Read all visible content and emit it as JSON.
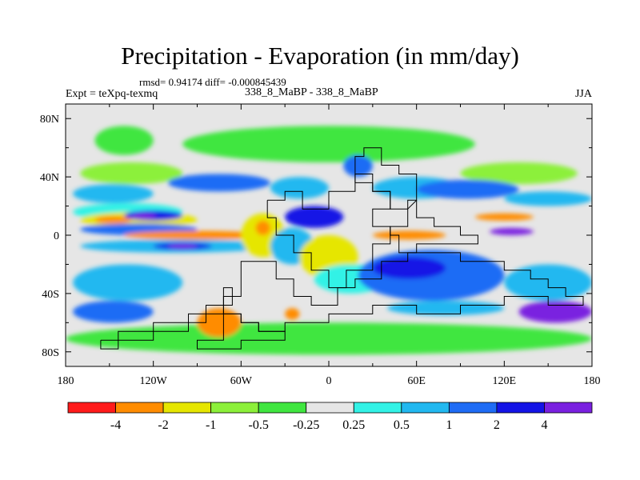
{
  "title": "Precipitation - Evaporation (in mm/day)",
  "stats_line": "rmsd= 0.94174 diff= -0.000845439",
  "experiment_label": "Expt = teXpq-texmq",
  "case_label": "338_8_MaBP - 338_8_MaBP",
  "season": "JJA",
  "colors": {
    "red": "#ff1b1b",
    "orange": "#ff8c00",
    "yellow": "#e6e600",
    "lightgreen": "#8cf03a",
    "green": "#40e640",
    "white": "#e6e6e6",
    "cyan": "#33f2e6",
    "lightblue": "#22b8f0",
    "blue": "#1f6cf5",
    "darkblue": "#1414e6",
    "purple": "#7a20e0",
    "ocean_bg": "#e6e6e6",
    "coastline": "#000000"
  },
  "chart_data": {
    "type": "heatmap",
    "title": "Precipitation - Evaporation (in mm/day)",
    "units": "mm/day",
    "projection": "cylindrical equidistant",
    "xlim": [
      -180,
      180
    ],
    "ylim": [
      -90,
      90
    ],
    "x_ticks": [
      -180,
      -120,
      -60,
      0,
      60,
      120,
      180
    ],
    "x_tick_labels": [
      "180",
      "120W",
      "60W",
      "0",
      "60E",
      "120E",
      "180"
    ],
    "y_ticks": [
      80,
      40,
      0,
      -40,
      -80
    ],
    "y_tick_labels": [
      "80N",
      "40N",
      "0",
      "40S",
      "80S"
    ],
    "colorbar": {
      "levels": [
        "-4",
        "-2",
        "-1",
        "-0.5",
        "-0.25",
        "0.25",
        "0.5",
        "1",
        "2",
        "4"
      ],
      "colors": [
        "#ff1b1b",
        "#ff8c00",
        "#e6e600",
        "#8cf03a",
        "#40e640",
        "#e6e6e6",
        "#33f2e6",
        "#22b8f0",
        "#1f6cf5",
        "#1414e6",
        "#7a20e0"
      ]
    },
    "regions": [
      {
        "category": "green",
        "lon_min": -160,
        "lon_max": -120,
        "lat_min": 55,
        "lat_max": 75
      },
      {
        "category": "green",
        "lon_min": -100,
        "lon_max": 100,
        "lat_min": 50,
        "lat_max": 75
      },
      {
        "category": "green",
        "lon_min": -180,
        "lon_max": 180,
        "lat_min": -82,
        "lat_max": -60
      },
      {
        "category": "lightgreen",
        "lon_min": -170,
        "lon_max": -100,
        "lat_min": 35,
        "lat_max": 50
      },
      {
        "category": "lightgreen",
        "lon_min": 90,
        "lon_max": 170,
        "lat_min": 35,
        "lat_max": 50
      },
      {
        "category": "lightblue",
        "lon_min": -175,
        "lon_max": -120,
        "lat_min": 22,
        "lat_max": 35
      },
      {
        "category": "cyan",
        "lon_min": -175,
        "lon_max": -100,
        "lat_min": 10,
        "lat_max": 22
      },
      {
        "category": "blue",
        "lon_min": -110,
        "lon_max": -40,
        "lat_min": 30,
        "lat_max": 42
      },
      {
        "category": "lightblue",
        "lon_min": -40,
        "lon_max": 0,
        "lat_min": 25,
        "lat_max": 40
      },
      {
        "category": "blue",
        "lon_min": 10,
        "lon_max": 30,
        "lat_min": 40,
        "lat_max": 55
      },
      {
        "category": "lightblue",
        "lon_min": 30,
        "lon_max": 90,
        "lat_min": 25,
        "lat_max": 40
      },
      {
        "category": "blue",
        "lon_min": 60,
        "lon_max": 130,
        "lat_min": 25,
        "lat_max": 38
      },
      {
        "category": "lightblue",
        "lon_min": 120,
        "lon_max": 180,
        "lat_min": 20,
        "lat_max": 30
      },
      {
        "category": "yellow",
        "lon_min": -170,
        "lon_max": -90,
        "lat_min": 5,
        "lat_max": 16
      },
      {
        "category": "orange",
        "lon_min": -160,
        "lon_max": -135,
        "lat_min": 8,
        "lat_max": 13
      },
      {
        "category": "darkblue",
        "lon_min": -140,
        "lon_max": -100,
        "lat_min": 10,
        "lat_max": 17
      },
      {
        "category": "purple",
        "lon_min": -135,
        "lon_max": -118,
        "lat_min": 11,
        "lat_max": 15
      },
      {
        "category": "blue",
        "lon_min": -170,
        "lon_max": -90,
        "lat_min": 0,
        "lat_max": 8
      },
      {
        "category": "orange",
        "lon_min": -140,
        "lon_max": -40,
        "lat_min": -3,
        "lat_max": 3
      },
      {
        "category": "lightblue",
        "lon_min": -170,
        "lon_max": -40,
        "lat_min": -12,
        "lat_max": -3
      },
      {
        "category": "darkblue",
        "lon_min": -120,
        "lon_max": -80,
        "lat_min": -10,
        "lat_max": -5
      },
      {
        "category": "purple",
        "lon_min": -110,
        "lon_max": -90,
        "lat_min": -9,
        "lat_max": -6
      },
      {
        "category": "yellow",
        "lon_min": -60,
        "lon_max": -30,
        "lat_min": -15,
        "lat_max": 15
      },
      {
        "category": "orange",
        "lon_min": -50,
        "lon_max": -40,
        "lat_min": 0,
        "lat_max": 10
      },
      {
        "category": "lightblue",
        "lon_min": -40,
        "lon_max": -10,
        "lat_min": -20,
        "lat_max": 5
      },
      {
        "category": "yellow",
        "lon_min": -20,
        "lon_max": 20,
        "lat_min": -30,
        "lat_max": 0
      },
      {
        "category": "darkblue",
        "lon_min": -30,
        "lon_max": 10,
        "lat_min": 5,
        "lat_max": 20
      },
      {
        "category": "cyan",
        "lon_min": -10,
        "lon_max": 40,
        "lat_min": -40,
        "lat_max": -20
      },
      {
        "category": "orange",
        "lon_min": 30,
        "lon_max": 80,
        "lat_min": -3,
        "lat_max": 3
      },
      {
        "category": "orange",
        "lon_min": 100,
        "lon_max": 140,
        "lat_min": 10,
        "lat_max": 15
      },
      {
        "category": "purple",
        "lon_min": 110,
        "lon_max": 140,
        "lat_min": 0,
        "lat_max": 5
      },
      {
        "category": "blue",
        "lon_min": 20,
        "lon_max": 120,
        "lat_min": -45,
        "lat_max": -10
      },
      {
        "category": "darkblue",
        "lon_min": 30,
        "lon_max": 80,
        "lat_min": -30,
        "lat_max": -15
      },
      {
        "category": "lightblue",
        "lon_min": 120,
        "lon_max": 180,
        "lat_min": -45,
        "lat_max": -20
      },
      {
        "category": "lightblue",
        "lon_min": -175,
        "lon_max": -100,
        "lat_min": -45,
        "lat_max": -20
      },
      {
        "category": "blue",
        "lon_min": -175,
        "lon_max": -120,
        "lat_min": -60,
        "lat_max": -45
      },
      {
        "category": "purple",
        "lon_min": 130,
        "lon_max": 180,
        "lat_min": -60,
        "lat_max": -45
      },
      {
        "category": "lightblue",
        "lon_min": 40,
        "lon_max": 120,
        "lat_min": -55,
        "lat_max": -45
      },
      {
        "category": "orange",
        "lon_min": -90,
        "lon_max": -60,
        "lat_min": -70,
        "lat_max": -50
      },
      {
        "category": "orange",
        "lon_min": -30,
        "lon_max": -20,
        "lat_min": -58,
        "lat_max": -50
      }
    ],
    "coastlines": [
      {
        "name": "tethys-continent",
        "points": [
          [
            -42,
            24
          ],
          [
            -42,
            12
          ],
          [
            -36,
            12
          ],
          [
            -36,
            0
          ],
          [
            -24,
            0
          ],
          [
            -24,
            -12
          ],
          [
            -12,
            -12
          ],
          [
            -12,
            -24
          ],
          [
            0,
            -24
          ],
          [
            0,
            -36
          ],
          [
            12,
            -36
          ],
          [
            12,
            -24
          ],
          [
            30,
            -24
          ],
          [
            30,
            -6
          ],
          [
            42,
            -6
          ],
          [
            42,
            6
          ],
          [
            30,
            6
          ],
          [
            30,
            18
          ],
          [
            42,
            18
          ],
          [
            42,
            30
          ],
          [
            30,
            30
          ],
          [
            30,
            42
          ],
          [
            18,
            42
          ],
          [
            18,
            30
          ],
          [
            0,
            30
          ],
          [
            0,
            18
          ],
          [
            -18,
            18
          ],
          [
            -18,
            30
          ],
          [
            -30,
            30
          ],
          [
            -30,
            24
          ],
          [
            -42,
            24
          ]
        ]
      },
      {
        "name": "north-plate",
        "points": [
          [
            18,
            36
          ],
          [
            18,
            54
          ],
          [
            24,
            54
          ],
          [
            24,
            60
          ],
          [
            36,
            60
          ],
          [
            36,
            48
          ],
          [
            48,
            48
          ],
          [
            48,
            42
          ],
          [
            60,
            42
          ],
          [
            60,
            24
          ],
          [
            54,
            24
          ],
          [
            54,
            18
          ],
          [
            42,
            18
          ],
          [
            42,
            30
          ],
          [
            30,
            30
          ],
          [
            30,
            36
          ],
          [
            18,
            36
          ]
        ]
      },
      {
        "name": "east-coast",
        "points": [
          [
            60,
            24
          ],
          [
            60,
            12
          ],
          [
            72,
            12
          ],
          [
            72,
            6
          ],
          [
            90,
            6
          ],
          [
            90,
            0
          ],
          [
            102,
            0
          ],
          [
            102,
            -6
          ],
          [
            60,
            -6
          ],
          [
            60,
            -12
          ],
          [
            48,
            -12
          ],
          [
            48,
            0
          ],
          [
            42,
            0
          ],
          [
            42,
            6
          ],
          [
            54,
            6
          ],
          [
            54,
            18
          ],
          [
            60,
            24
          ]
        ]
      },
      {
        "name": "gondwana-south",
        "points": [
          [
            -60,
            -24
          ],
          [
            -60,
            -18
          ],
          [
            -36,
            -18
          ],
          [
            -36,
            -30
          ],
          [
            -24,
            -30
          ],
          [
            -24,
            -42
          ],
          [
            -12,
            -42
          ],
          [
            -12,
            -48
          ],
          [
            6,
            -48
          ],
          [
            6,
            -36
          ],
          [
            18,
            -36
          ],
          [
            18,
            -30
          ],
          [
            36,
            -30
          ],
          [
            36,
            -18
          ],
          [
            54,
            -18
          ],
          [
            54,
            -12
          ],
          [
            90,
            -12
          ],
          [
            90,
            -18
          ],
          [
            120,
            -18
          ],
          [
            120,
            -24
          ],
          [
            138,
            -24
          ],
          [
            138,
            -30
          ],
          [
            150,
            -30
          ],
          [
            150,
            -36
          ],
          [
            162,
            -36
          ],
          [
            162,
            -42
          ],
          [
            174,
            -42
          ],
          [
            174,
            -48
          ],
          [
            150,
            -48
          ],
          [
            150,
            -42
          ],
          [
            120,
            -42
          ],
          [
            120,
            -48
          ],
          [
            90,
            -48
          ],
          [
            90,
            -54
          ],
          [
            60,
            -54
          ],
          [
            60,
            -48
          ],
          [
            30,
            -48
          ],
          [
            30,
            -54
          ],
          [
            0,
            -54
          ],
          [
            0,
            -60
          ],
          [
            -30,
            -60
          ],
          [
            -30,
            -66
          ],
          [
            -48,
            -66
          ],
          [
            -48,
            -60
          ],
          [
            -60,
            -60
          ],
          [
            -60,
            -54
          ],
          [
            -72,
            -54
          ],
          [
            -72,
            -42
          ],
          [
            -60,
            -42
          ],
          [
            -60,
            -24
          ]
        ]
      },
      {
        "name": "antarctic-strip",
        "points": [
          [
            -156,
            -72
          ],
          [
            -144,
            -72
          ],
          [
            -144,
            -66
          ],
          [
            -120,
            -66
          ],
          [
            -120,
            -60
          ],
          [
            -96,
            -60
          ],
          [
            -96,
            -54
          ],
          [
            -84,
            -54
          ],
          [
            -84,
            -48
          ],
          [
            -72,
            -48
          ],
          [
            -72,
            -36
          ],
          [
            -66,
            -36
          ],
          [
            -66,
            -48
          ],
          [
            -72,
            -48
          ],
          [
            -72,
            -54
          ],
          [
            -84,
            -54
          ],
          [
            -84,
            -60
          ],
          [
            -96,
            -60
          ],
          [
            -96,
            -66
          ],
          [
            -120,
            -66
          ],
          [
            -120,
            -72
          ],
          [
            -144,
            -72
          ],
          [
            -144,
            -78
          ],
          [
            -156,
            -78
          ],
          [
            -156,
            -72
          ]
        ]
      },
      {
        "name": "south-plate",
        "points": [
          [
            -72,
            -54
          ],
          [
            -60,
            -54
          ],
          [
            -60,
            -60
          ],
          [
            -48,
            -60
          ],
          [
            -48,
            -66
          ],
          [
            -30,
            -66
          ],
          [
            -30,
            -72
          ],
          [
            -60,
            -72
          ],
          [
            -60,
            -78
          ],
          [
            -90,
            -78
          ],
          [
            -90,
            -72
          ],
          [
            -72,
            -72
          ],
          [
            -72,
            -54
          ]
        ]
      }
    ]
  }
}
